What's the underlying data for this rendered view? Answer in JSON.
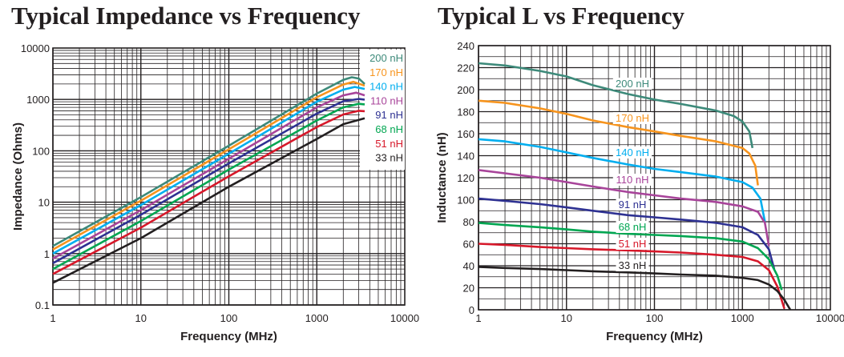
{
  "charts": {
    "impedance": {
      "title": "Typical Impedance vs Frequency"
    },
    "inductance": {
      "title": "Typical L vs Frequency"
    }
  },
  "colors": {
    "33 nH": "#231f20",
    "51 nH": "#d7182a",
    "68 nH": "#00a651",
    "91 nH": "#2e3192",
    "110 nH": "#a8449a",
    "140 nH": "#00aeef",
    "170 nH": "#f7941d",
    "200 nH": "#3d8a7a"
  },
  "chart_data": [
    {
      "type": "line",
      "title": "Typical Impedance vs Frequency",
      "xlabel": "Frequency (MHz)",
      "ylabel": "Impedance (Ohms)",
      "xscale": "log",
      "yscale": "log",
      "xlim": [
        1,
        10000
      ],
      "ylim": [
        0.1,
        10000
      ],
      "xticks": [
        "1",
        "10",
        "100",
        "1000",
        "10000"
      ],
      "yticks": [
        "0.1",
        "1",
        "10",
        "100",
        "1000",
        "10000"
      ],
      "grid": true,
      "legend": "right",
      "series": [
        {
          "name": "33 nH",
          "x": [
            1,
            10,
            100,
            1000,
            2000,
            3500
          ],
          "y": [
            0.27,
            2.0,
            20,
            170,
            330,
            430
          ]
        },
        {
          "name": "51 nH",
          "x": [
            1,
            10,
            100,
            1000,
            2000,
            3000,
            3500
          ],
          "y": [
            0.4,
            3.2,
            32,
            290,
            510,
            600,
            590
          ]
        },
        {
          "name": "68 nH",
          "x": [
            1,
            10,
            100,
            1000,
            2000,
            3000,
            3500
          ],
          "y": [
            0.5,
            4.3,
            43,
            390,
            700,
            820,
            800
          ]
        },
        {
          "name": "91 nH",
          "x": [
            1,
            10,
            100,
            1000,
            2000,
            3000,
            3500
          ],
          "y": [
            0.65,
            5.7,
            57,
            530,
            920,
            1020,
            990
          ]
        },
        {
          "name": "110 nH",
          "x": [
            1,
            10,
            100,
            1000,
            2000,
            2800,
            3500
          ],
          "y": [
            0.8,
            7,
            70,
            700,
            1200,
            1350,
            1200
          ]
        },
        {
          "name": "140 nH",
          "x": [
            1,
            10,
            100,
            1000,
            2000,
            2700,
            3500
          ],
          "y": [
            1.0,
            8.8,
            88,
            900,
            1550,
            1750,
            1600
          ]
        },
        {
          "name": "170 nH",
          "x": [
            1,
            10,
            100,
            1000,
            2000,
            2600,
            3500
          ],
          "y": [
            1.2,
            10.7,
            107,
            1100,
            1950,
            2200,
            1850
          ]
        },
        {
          "name": "200 nH",
          "x": [
            1,
            10,
            100,
            1000,
            2000,
            2500,
            3000,
            3500
          ],
          "y": [
            1.4,
            12.6,
            126,
            1300,
            2400,
            2700,
            2550,
            2000
          ]
        }
      ]
    },
    {
      "type": "line",
      "title": "Typical L vs Frequency",
      "xlabel": "Frequency (MHz)",
      "ylabel": "Inductance (nH)",
      "xscale": "log",
      "xlim": [
        1,
        10000
      ],
      "ylim": [
        0,
        240
      ],
      "xticks": [
        "1",
        "10",
        "100",
        "1000",
        "10000"
      ],
      "yticks": [
        "0",
        "20",
        "40",
        "60",
        "80",
        "100",
        "120",
        "140",
        "160",
        "180",
        "200",
        "220",
        "240"
      ],
      "grid": true,
      "series": [
        {
          "name": "200 nH",
          "x": [
            1,
            2,
            5,
            10,
            20,
            50,
            100,
            200,
            500,
            800,
            1000,
            1200,
            1300
          ],
          "y": [
            224,
            222,
            217,
            212,
            204,
            196,
            191,
            187,
            181,
            176,
            171,
            162,
            147
          ]
        },
        {
          "name": "170 nH",
          "x": [
            1,
            2,
            5,
            10,
            20,
            50,
            100,
            200,
            500,
            1000,
            1200,
            1400,
            1500
          ],
          "y": [
            190,
            188,
            183,
            178,
            172,
            166,
            162,
            158,
            153,
            147,
            142,
            131,
            113
          ]
        },
        {
          "name": "140 nH",
          "x": [
            1,
            2,
            5,
            10,
            20,
            50,
            100,
            200,
            500,
            1000,
            1300,
            1600,
            1800
          ],
          "y": [
            155,
            153,
            148,
            143,
            138,
            132,
            128,
            125,
            121,
            116,
            111,
            101,
            80
          ]
        },
        {
          "name": "110 nH",
          "x": [
            1,
            2,
            5,
            10,
            20,
            50,
            100,
            200,
            500,
            1000,
            1500,
            1800,
            2000
          ],
          "y": [
            127,
            124,
            120,
            116,
            112,
            107,
            104,
            101,
            98,
            94,
            89,
            79,
            58
          ]
        },
        {
          "name": "91 nH",
          "x": [
            1,
            2,
            5,
            10,
            20,
            50,
            100,
            200,
            500,
            1000,
            1500,
            2000,
            2300
          ],
          "y": [
            101,
            99,
            96,
            93,
            90,
            86,
            84,
            82,
            79,
            75,
            68,
            55,
            37
          ]
        },
        {
          "name": "68 nH",
          "x": [
            1,
            2,
            5,
            10,
            20,
            50,
            100,
            200,
            500,
            1000,
            1500,
            2000,
            2500,
            2800
          ],
          "y": [
            79,
            77,
            75,
            73,
            71,
            69,
            68,
            67,
            65,
            62,
            56,
            46,
            31,
            18
          ]
        },
        {
          "name": "51 nH",
          "x": [
            1,
            2,
            5,
            10,
            20,
            50,
            100,
            200,
            500,
            1000,
            1500,
            2000,
            2500,
            3000
          ],
          "y": [
            60,
            59,
            57,
            56,
            55,
            54,
            53,
            52,
            50,
            48,
            44,
            36,
            21,
            1
          ]
        },
        {
          "name": "33 nH",
          "x": [
            1,
            2,
            5,
            10,
            20,
            50,
            100,
            200,
            500,
            1000,
            1500,
            2000,
            2500,
            3000,
            3500
          ],
          "y": [
            39,
            38,
            37,
            36,
            35,
            34,
            33,
            32,
            31,
            29,
            27,
            23,
            17,
            9,
            0
          ]
        }
      ]
    }
  ]
}
